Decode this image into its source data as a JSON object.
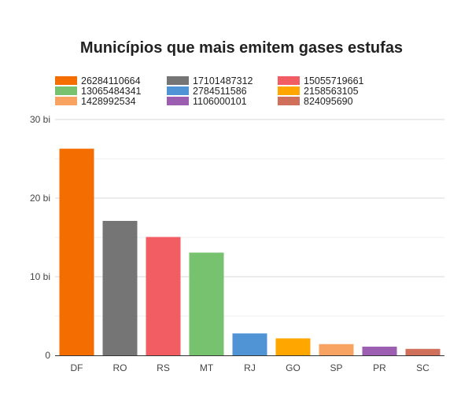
{
  "chart_data": {
    "type": "bar",
    "title": "Municípios que mais emitem gases estufas",
    "categories": [
      "DF",
      "RO",
      "RS",
      "MT",
      "RJ",
      "GO",
      "SP",
      "PR",
      "SC"
    ],
    "values": [
      26284110664,
      17101487312,
      15055719661,
      13065484341,
      2784511586,
      2158563105,
      1428992534,
      1106000101,
      824095690
    ],
    "colors": [
      "#f46d00",
      "#757575",
      "#f25c63",
      "#77c26e",
      "#5094d6",
      "#ffa600",
      "#f8a361",
      "#9c5eb0",
      "#d0705b"
    ],
    "legend_labels": [
      "26284110664",
      "17101487312",
      "15055719661",
      "13065484341",
      "2784511586",
      "2158563105",
      "1428992534",
      "1106000101",
      "824095690"
    ],
    "legend_position": "top",
    "ylim": [
      0,
      30000000000
    ],
    "yticks": [
      {
        "value": 0,
        "label": "0"
      },
      {
        "value": 10000000000,
        "label": "10 bi"
      },
      {
        "value": 20000000000,
        "label": "20 bi"
      },
      {
        "value": 30000000000,
        "label": "30 bi"
      }
    ],
    "minor_gridlines": [
      5000000000,
      15000000000,
      25000000000
    ],
    "grid": true,
    "xlabel": "",
    "ylabel": ""
  }
}
